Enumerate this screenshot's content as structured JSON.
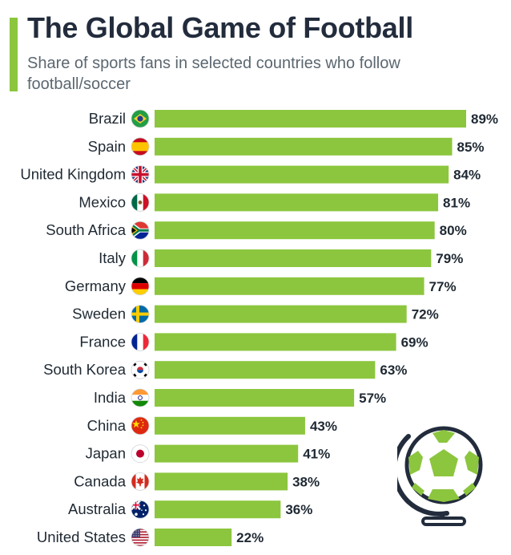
{
  "header": {
    "title": "The Global Game of Football",
    "subtitle": "Share of sports fans in selected countries who follow football/soccer"
  },
  "colors": {
    "accent": "#8cc63e",
    "bar": "#8cc63e",
    "title": "#222c3c",
    "subtitle": "#5b6770",
    "text": "#1f2933"
  },
  "icons": {
    "flags": [
      "brazil-flag-icon",
      "spain-flag-icon",
      "united-kingdom-flag-icon",
      "mexico-flag-icon",
      "south-africa-flag-icon",
      "italy-flag-icon",
      "germany-flag-icon",
      "sweden-flag-icon",
      "france-flag-icon",
      "south-korea-flag-icon",
      "india-flag-icon",
      "china-flag-icon",
      "japan-flag-icon",
      "canada-flag-icon",
      "australia-flag-icon",
      "united-states-flag-icon"
    ],
    "decoration": "football-globe-icon"
  },
  "chart_data": {
    "type": "bar",
    "orientation": "horizontal",
    "categories": [
      "Brazil",
      "Spain",
      "United Kingdom",
      "Mexico",
      "South Africa",
      "Italy",
      "Germany",
      "Sweden",
      "France",
      "South Korea",
      "India",
      "China",
      "Japan",
      "Canada",
      "Australia",
      "United States"
    ],
    "values": [
      89,
      85,
      84,
      81,
      80,
      79,
      77,
      72,
      69,
      63,
      57,
      43,
      41,
      38,
      36,
      22
    ],
    "labels": [
      "89%",
      "85%",
      "84%",
      "81%",
      "80%",
      "79%",
      "77%",
      "72%",
      "69%",
      "63%",
      "57%",
      "43%",
      "41%",
      "38%",
      "36%",
      "22%"
    ],
    "title": "The Global Game of Football",
    "subtitle": "Share of sports fans in selected countries who follow football/soccer",
    "xlabel": "",
    "ylabel": "",
    "xlim": [
      0,
      89
    ],
    "grid": false
  }
}
